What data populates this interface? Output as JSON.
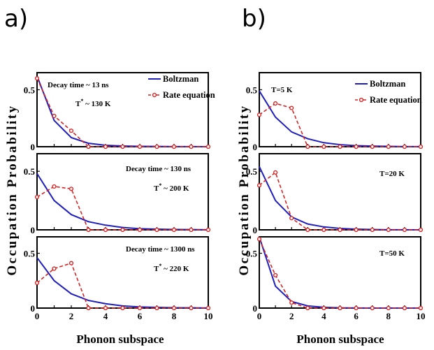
{
  "panels": [
    "a)",
    "b)"
  ],
  "shared_ylabel": "Occupation  Probability",
  "shared_xlabel": "Phonon subspace",
  "legend": {
    "boltzmann": "Boltzman",
    "rate": "Rate equation"
  },
  "colors": {
    "boltzmann": "#1f1fbf",
    "rate": "#d62424"
  },
  "chart_data": [
    {
      "type": "line",
      "panel": "a",
      "row": 0,
      "x": [
        0,
        1,
        2,
        3,
        4,
        5,
        6,
        7,
        8,
        9,
        10
      ],
      "series": [
        {
          "name": "Boltzman",
          "values": [
            0.62,
            0.23,
            0.08,
            0.03,
            0.012,
            0.006,
            0.003,
            0.002,
            0.001,
            0.0005,
            0.0003
          ]
        },
        {
          "name": "Rate equation",
          "values": [
            0.6,
            0.27,
            0.14,
            0.0,
            0.0,
            0.0,
            0.0,
            0.0,
            0.0,
            0.0,
            0.0
          ]
        }
      ],
      "annotations": [
        "Decay time ~ 13 ns",
        "T* ~ 130 K"
      ],
      "legend": true,
      "xlim": [
        0,
        10
      ],
      "ylim": [
        0,
        0.65
      ],
      "yticks": [
        0,
        0.5
      ]
    },
    {
      "type": "line",
      "panel": "a",
      "row": 1,
      "x": [
        0,
        1,
        2,
        3,
        4,
        5,
        6,
        7,
        8,
        9,
        10
      ],
      "series": [
        {
          "name": "Boltzman",
          "values": [
            0.48,
            0.25,
            0.13,
            0.07,
            0.04,
            0.02,
            0.01,
            0.006,
            0.003,
            0.002,
            0.001
          ]
        },
        {
          "name": "Rate equation",
          "values": [
            0.28,
            0.37,
            0.35,
            0.0,
            0.0,
            0.0,
            0.0,
            0.0,
            0.0,
            0.0,
            0.0
          ]
        }
      ],
      "annotations": [
        "Decay time ~ 130 ns",
        "T* ~ 200 K"
      ],
      "legend": false,
      "xlim": [
        0,
        10
      ],
      "ylim": [
        0,
        0.65
      ],
      "yticks": [
        0,
        0.5
      ]
    },
    {
      "type": "line",
      "panel": "a",
      "row": 2,
      "x": [
        0,
        1,
        2,
        3,
        4,
        5,
        6,
        7,
        8,
        9,
        10
      ],
      "series": [
        {
          "name": "Boltzman",
          "values": [
            0.46,
            0.25,
            0.13,
            0.07,
            0.04,
            0.02,
            0.01,
            0.006,
            0.003,
            0.002,
            0.001
          ]
        },
        {
          "name": "Rate equation",
          "values": [
            0.23,
            0.36,
            0.41,
            0.0,
            0.0,
            0.0,
            0.0,
            0.0,
            0.0,
            0.0,
            0.0
          ]
        }
      ],
      "annotations": [
        "Decay time ~ 1300 ns",
        "T* ~ 220 K"
      ],
      "legend": false,
      "xlim": [
        0,
        10
      ],
      "ylim": [
        0,
        0.65
      ],
      "yticks": [
        0,
        0.5
      ]
    },
    {
      "type": "line",
      "panel": "b",
      "row": 0,
      "x": [
        0,
        1,
        2,
        3,
        4,
        5,
        6,
        7,
        8,
        9,
        10
      ],
      "series": [
        {
          "name": "Boltzman",
          "values": [
            0.49,
            0.26,
            0.13,
            0.07,
            0.035,
            0.018,
            0.009,
            0.005,
            0.003,
            0.001,
            0.001
          ]
        },
        {
          "name": "Rate equation",
          "values": [
            0.28,
            0.38,
            0.34,
            0.0,
            0.0,
            0.0,
            0.0,
            0.0,
            0.0,
            0.0,
            0.0
          ]
        }
      ],
      "annotations": [
        "T=5 K"
      ],
      "legend": true,
      "xlim": [
        0,
        10
      ],
      "ylim": [
        0,
        0.65
      ],
      "yticks": [
        0,
        0.5
      ]
    },
    {
      "type": "line",
      "panel": "b",
      "row": 1,
      "x": [
        0,
        1,
        2,
        3,
        4,
        5,
        6,
        7,
        8,
        9,
        10
      ],
      "series": [
        {
          "name": "Boltzman",
          "values": [
            0.54,
            0.25,
            0.11,
            0.05,
            0.025,
            0.012,
            0.006,
            0.003,
            0.001,
            0.001,
            0.0
          ]
        },
        {
          "name": "Rate equation",
          "values": [
            0.38,
            0.49,
            0.1,
            0.0,
            0.0,
            0.0,
            0.0,
            0.0,
            0.0,
            0.0,
            0.0
          ]
        }
      ],
      "annotations": [
        "T=20 K"
      ],
      "legend": false,
      "xlim": [
        0,
        10
      ],
      "ylim": [
        0,
        0.65
      ],
      "yticks": [
        0,
        0.5
      ]
    },
    {
      "type": "line",
      "panel": "b",
      "row": 2,
      "x": [
        0,
        1,
        2,
        3,
        4,
        5,
        6,
        7,
        8,
        9,
        10
      ],
      "series": [
        {
          "name": "Boltzman",
          "values": [
            0.65,
            0.2,
            0.06,
            0.02,
            0.007,
            0.002,
            0.001,
            0.0,
            0.0,
            0.0,
            0.0
          ]
        },
        {
          "name": "Rate equation",
          "values": [
            0.63,
            0.3,
            0.05,
            0.0,
            0.0,
            0.0,
            0.0,
            0.0,
            0.0,
            0.0,
            0.0
          ]
        }
      ],
      "annotations": [
        "T=50 K"
      ],
      "legend": false,
      "xlim": [
        0,
        10
      ],
      "ylim": [
        0,
        0.65
      ],
      "yticks": [
        0,
        0.5
      ]
    }
  ]
}
